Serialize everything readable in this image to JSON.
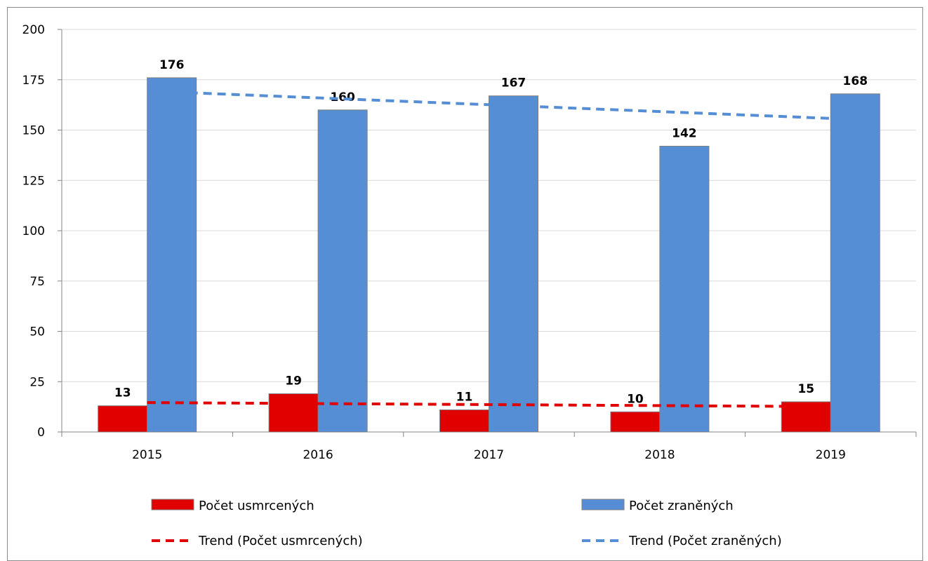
{
  "chart_data": {
    "type": "bar",
    "categories": [
      "2015",
      "2016",
      "2017",
      "2018",
      "2019"
    ],
    "series": [
      {
        "name": "Počet usmrcených",
        "values": [
          13,
          19,
          11,
          10,
          15
        ],
        "color": "#e00000"
      },
      {
        "name": "Počet zraněných",
        "values": [
          176,
          160,
          167,
          142,
          168
        ],
        "color": "#558ed5"
      }
    ],
    "trendlines": [
      {
        "name": "Trend (Počet usmrcených)",
        "type": "linear",
        "series": "Počet usmrcených",
        "color": "#e00000"
      },
      {
        "name": "Trend (Počet zraněných)",
        "type": "linear",
        "series": "Počet zraněných",
        "color": "#558ed5"
      }
    ],
    "ylim": [
      0,
      200
    ],
    "yticks": [
      0,
      25,
      50,
      75,
      100,
      125,
      150,
      175,
      200
    ],
    "grid": true,
    "legend": "bottom",
    "title": "",
    "xlabel": "",
    "ylabel": ""
  }
}
